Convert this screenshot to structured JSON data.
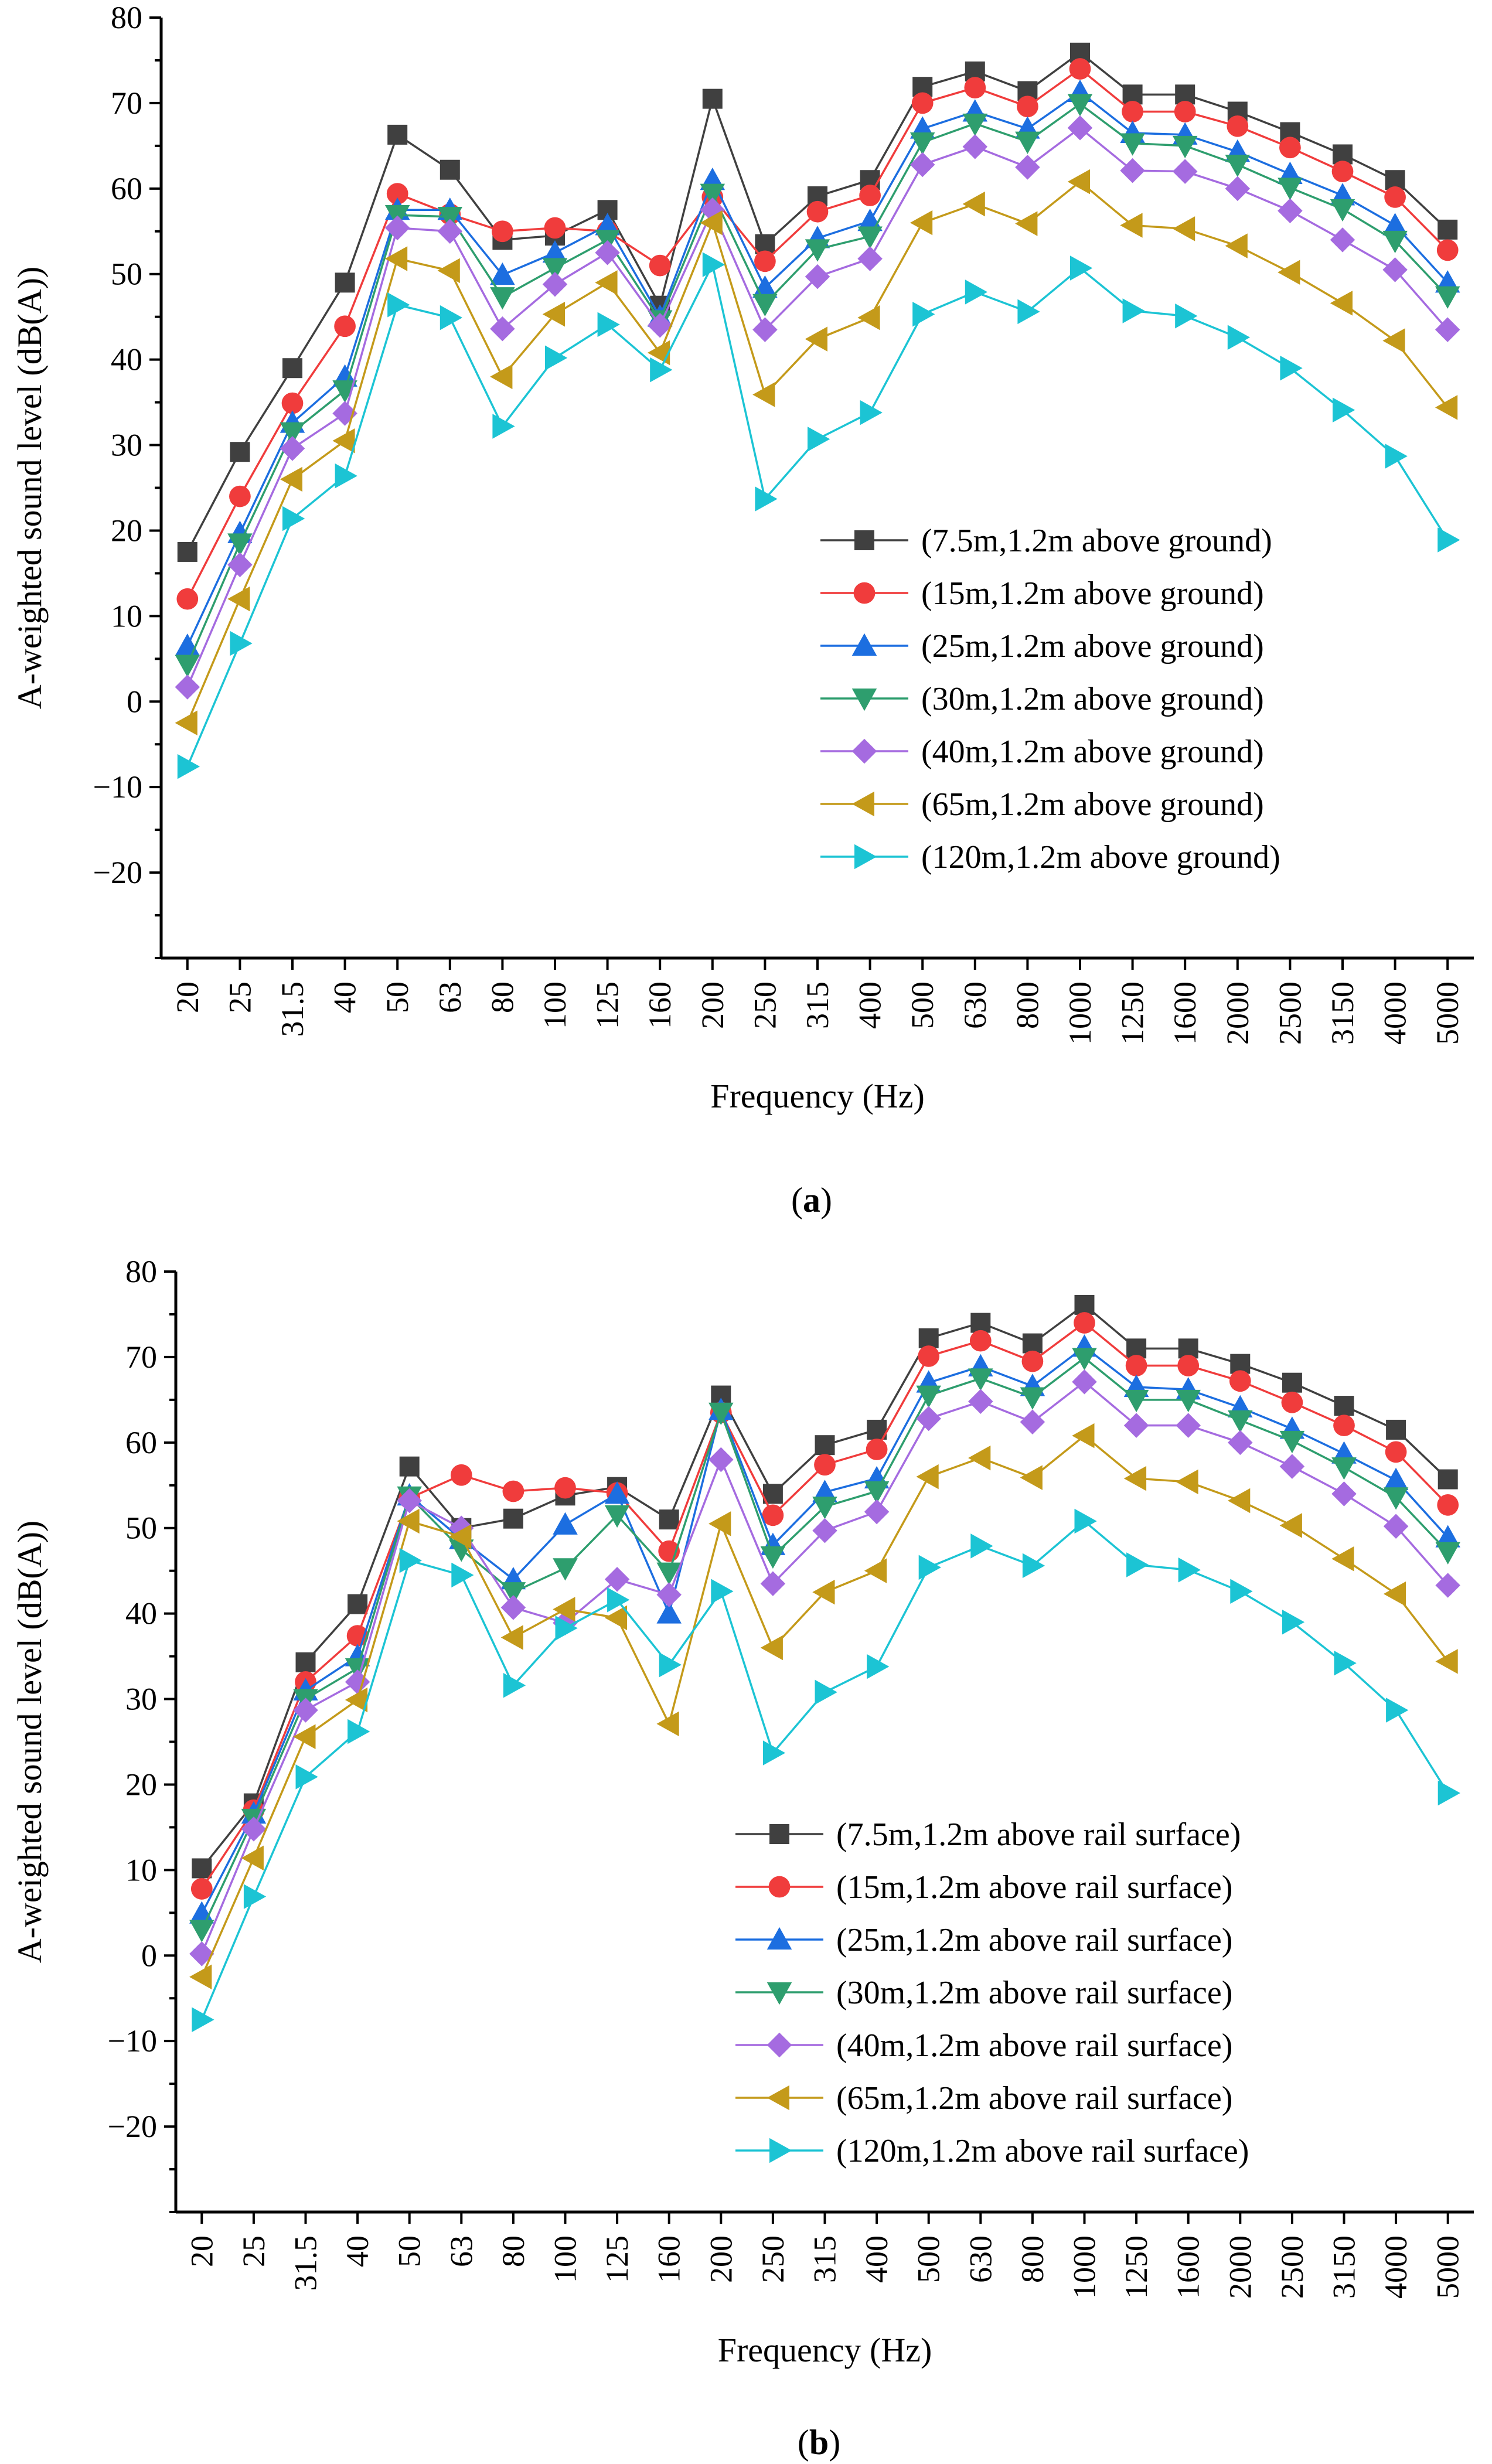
{
  "chart_data": [
    {
      "type": "line",
      "panel_label": "a",
      "xlabel": "Frequency (Hz)",
      "ylabel": "A-weighted sound level (dB(A))",
      "ylim": [
        -30,
        80
      ],
      "yticks": [
        -20,
        -10,
        0,
        10,
        20,
        30,
        40,
        50,
        60,
        70,
        80
      ],
      "legend_position": "right",
      "categories": [
        "20",
        "25",
        "31.5",
        "40",
        "50",
        "63",
        "80",
        "100",
        "125",
        "160",
        "200",
        "250",
        "315",
        "400",
        "500",
        "630",
        "800",
        "1000",
        "1250",
        "1600",
        "2000",
        "2500",
        "3150",
        "4000",
        "5000"
      ],
      "series": [
        {
          "name": "(7.5m,1.2m above ground)",
          "color": "#404040",
          "marker": "square",
          "values": [
            17.5,
            29.2,
            39,
            49,
            66.3,
            62.2,
            54,
            54.5,
            57.5,
            46.3,
            70.5,
            53.5,
            59.1,
            61,
            71.9,
            73.7,
            71.4,
            75.9,
            71,
            71,
            69,
            66.6,
            64,
            61,
            55.2
          ]
        },
        {
          "name": "(15m,1.2m above ground)",
          "color": "#f03c3c",
          "marker": "circle",
          "values": [
            12,
            24,
            34.9,
            43.9,
            59.4,
            57,
            55,
            55.4,
            55,
            51,
            59,
            51.5,
            57.3,
            59.2,
            70,
            71.8,
            69.6,
            74,
            69,
            69,
            67.3,
            64.8,
            62,
            59,
            52.8
          ]
        },
        {
          "name": "(25m,1.2m above ground)",
          "color": "#1c6ee0",
          "marker": "triangle-up",
          "values": [
            6.5,
            19.7,
            32.6,
            38,
            57.5,
            57.5,
            49.9,
            52.5,
            55.7,
            45,
            61,
            48.4,
            54.2,
            56.2,
            67,
            69,
            67,
            71.3,
            66.5,
            66.3,
            64.3,
            61.7,
            59.2,
            55.7,
            49
          ]
        },
        {
          "name": "(30m,1.2m above ground)",
          "color": "#2e9e6e",
          "marker": "triangle-down",
          "values": [
            4.3,
            18.5,
            31.5,
            36.4,
            56.9,
            56.7,
            47.3,
            50.7,
            54,
            44.6,
            59.4,
            46.5,
            52.9,
            54.4,
            65.4,
            67.6,
            65.5,
            69.9,
            65.3,
            65,
            62.8,
            60.1,
            57.6,
            53.9,
            47.4
          ]
        },
        {
          "name": "(40m,1.2m above ground)",
          "color": "#a56be0",
          "marker": "diamond",
          "values": [
            1.7,
            16,
            29.6,
            33.7,
            55.4,
            55,
            43.6,
            48.8,
            52.5,
            44,
            57.5,
            43.5,
            49.7,
            51.8,
            62.8,
            64.9,
            62.5,
            67.1,
            62.1,
            62,
            60,
            57.4,
            54,
            50.5,
            43.5
          ]
        },
        {
          "name": "(65m,1.2m above ground)",
          "color": "#c49a1a",
          "marker": "triangle-left",
          "values": [
            -2.5,
            12,
            26,
            30.5,
            51.8,
            50.4,
            38,
            45.3,
            49,
            40.8,
            56,
            35.9,
            42.4,
            44.9,
            56,
            58.2,
            55.9,
            60.8,
            55.7,
            55.3,
            53.3,
            50.2,
            46.6,
            42.2,
            34.4
          ]
        },
        {
          "name": "(120m,1.2m above ground)",
          "color": "#1cc4d4",
          "marker": "triangle-right",
          "values": [
            -7.6,
            6.8,
            21.4,
            26.4,
            46.4,
            44.9,
            32.2,
            40.2,
            44.1,
            38.8,
            51.1,
            23.7,
            30.7,
            33.8,
            45.3,
            47.9,
            45.6,
            50.7,
            45.7,
            45.1,
            42.6,
            39,
            34.1,
            28.7,
            18.9
          ]
        }
      ]
    },
    {
      "type": "line",
      "panel_label": "b",
      "xlabel": "Frequency (Hz)",
      "ylabel": "A-weighted sound level (dB(A))",
      "ylim": [
        -30,
        80
      ],
      "yticks": [
        -20,
        -10,
        0,
        10,
        20,
        30,
        40,
        50,
        60,
        70,
        80
      ],
      "legend_position": "bottom-right",
      "categories": [
        "20",
        "25",
        "31.5",
        "40",
        "50",
        "63",
        "80",
        "100",
        "125",
        "160",
        "200",
        "250",
        "315",
        "400",
        "500",
        "630",
        "800",
        "1000",
        "1250",
        "1600",
        "2000",
        "2500",
        "3150",
        "4000",
        "5000"
      ],
      "series": [
        {
          "name": "(7.5m,1.2m above rail surface)",
          "color": "#404040",
          "marker": "square",
          "values": [
            10.2,
            17.8,
            34.3,
            41.1,
            57.2,
            50,
            51.1,
            53.8,
            54.8,
            51,
            65.5,
            54,
            59.7,
            61.5,
            72.2,
            74,
            71.6,
            76.1,
            71,
            71,
            69.2,
            67,
            64.3,
            61.5,
            55.7
          ]
        },
        {
          "name": "(15m,1.2m above rail surface)",
          "color": "#f03c3c",
          "marker": "circle",
          "values": [
            7.8,
            17,
            32,
            37.4,
            53.5,
            56.2,
            54.3,
            54.7,
            54.1,
            47.3,
            63.5,
            51.5,
            57.4,
            59.2,
            70.1,
            71.9,
            69.5,
            74,
            69,
            69,
            67.2,
            64.7,
            62,
            58.9,
            52.7
          ]
        },
        {
          "name": "(25m,1.2m above rail surface)",
          "color": "#1c6ee0",
          "marker": "triangle-up",
          "values": [
            4.9,
            16.6,
            31,
            35,
            53.8,
            48.7,
            44,
            50.4,
            54,
            40,
            63.8,
            48,
            54.2,
            55.8,
            67,
            68.9,
            66.6,
            71.2,
            66.5,
            66.2,
            64.1,
            61.6,
            58.7,
            55.6,
            48.9
          ]
        },
        {
          "name": "(30m,1.2m above rail surface)",
          "color": "#2e9e6e",
          "marker": "triangle-down",
          "values": [
            3,
            16,
            30,
            33.6,
            53.7,
            47.5,
            42.5,
            45.3,
            51.5,
            44.8,
            63.5,
            46.7,
            52.5,
            54.3,
            65.5,
            67.5,
            65.3,
            69.9,
            65,
            65,
            62.6,
            60.2,
            57.1,
            53.6,
            47.2
          ]
        },
        {
          "name": "(40m,1.2m above rail surface)",
          "color": "#a56be0",
          "marker": "diamond",
          "values": [
            0.2,
            14.8,
            28.7,
            32,
            53.2,
            50,
            40.7,
            38.9,
            44,
            42.2,
            58,
            43.5,
            49.7,
            51.9,
            62.8,
            64.8,
            62.4,
            67.1,
            62,
            62,
            60,
            57.2,
            54,
            50.2,
            43.3
          ]
        },
        {
          "name": "(65m,1.2m above rail surface)",
          "color": "#c49a1a",
          "marker": "triangle-left",
          "values": [
            -2.5,
            11.4,
            25.6,
            29.9,
            50.8,
            49,
            37.2,
            40.5,
            39.5,
            27.1,
            50.5,
            36,
            42.5,
            45,
            56,
            58.2,
            55.9,
            60.8,
            55.8,
            55.4,
            53.2,
            50.3,
            46.4,
            42.3,
            34.4
          ]
        },
        {
          "name": "(120m,1.2m above rail surface)",
          "color": "#1cc4d4",
          "marker": "triangle-right",
          "values": [
            -7.5,
            6.9,
            20.9,
            26.2,
            46.2,
            44.5,
            31.6,
            38.3,
            41.6,
            34,
            42.6,
            23.7,
            30.8,
            33.8,
            45.4,
            47.9,
            45.6,
            50.8,
            45.7,
            45.1,
            42.6,
            39,
            34.2,
            28.7,
            19
          ]
        }
      ]
    }
  ]
}
